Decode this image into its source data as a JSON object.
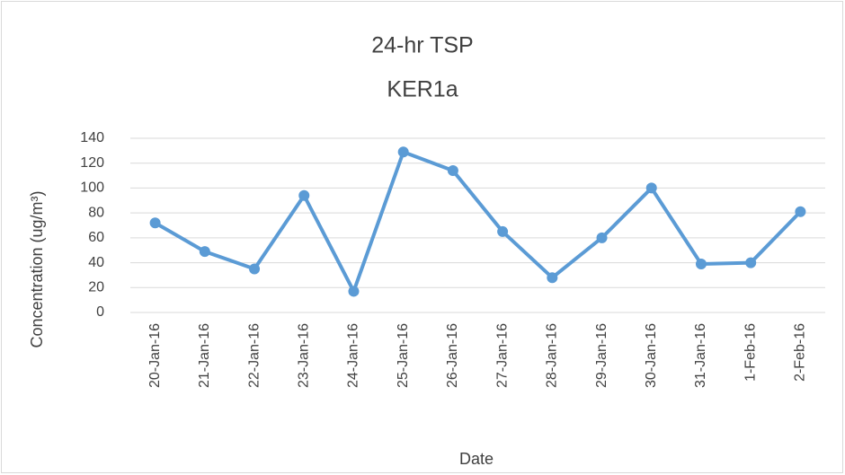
{
  "chart_data": {
    "type": "line",
    "title": [
      "24-hr TSP",
      "KER1a"
    ],
    "x_label": "Date",
    "y_label": "Concentration (ug/m³)",
    "categories": [
      "20-Jan-16",
      "21-Jan-16",
      "22-Jan-16",
      "23-Jan-16",
      "24-Jan-16",
      "25-Jan-16",
      "26-Jan-16",
      "27-Jan-16",
      "28-Jan-16",
      "29-Jan-16",
      "30-Jan-16",
      "31-Jan-16",
      "1-Feb-16",
      "2-Feb-16"
    ],
    "series": [
      {
        "color": "#5b9bd5",
        "values": [
          72,
          49,
          35,
          94,
          17,
          129,
          114,
          65,
          28,
          60,
          100,
          39,
          40,
          81
        ]
      }
    ],
    "ylim": [
      0,
      140
    ],
    "yticks": [
      0,
      20,
      40,
      60,
      80,
      100,
      120,
      140
    ],
    "grid": true
  }
}
